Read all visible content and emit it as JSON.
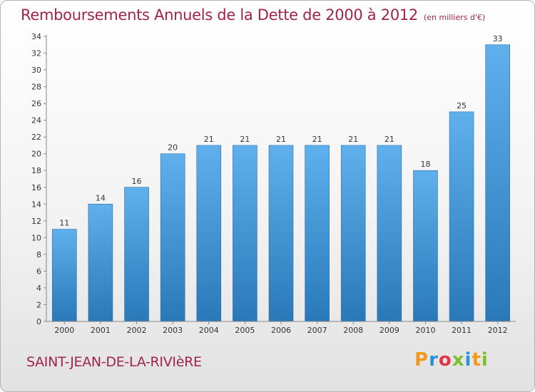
{
  "chart_data": {
    "type": "bar",
    "title": "Remboursements Annuels de la Dette de 2000 à 2012",
    "subtitle": "(en milliers d'€)",
    "categories": [
      "2000",
      "2001",
      "2002",
      "2003",
      "2004",
      "2005",
      "2006",
      "2007",
      "2008",
      "2009",
      "2010",
      "2011",
      "2012"
    ],
    "values": [
      11,
      14,
      16,
      20,
      21,
      21,
      21,
      21,
      21,
      21,
      18,
      25,
      33
    ],
    "ylim": [
      0,
      34
    ],
    "yticks": [
      0,
      2,
      4,
      6,
      8,
      10,
      12,
      14,
      16,
      18,
      20,
      22,
      24,
      26,
      28,
      30,
      32,
      34
    ],
    "xlabel": "",
    "ylabel": "",
    "grid": false
  },
  "footer": {
    "commune": "SAINT-JEAN-DE-LA-RIVIèRE",
    "logo_text": "Proxiti"
  },
  "colors": {
    "title": "#a0244a",
    "bar_top": "#5fb0ec",
    "bar_bottom": "#2a78b8",
    "logo": [
      "#f39a1e",
      "#2b93d6",
      "#e5334b",
      "#7cbf2f",
      "#2b93d6",
      "#f39a1e",
      "#7cbf2f"
    ]
  }
}
